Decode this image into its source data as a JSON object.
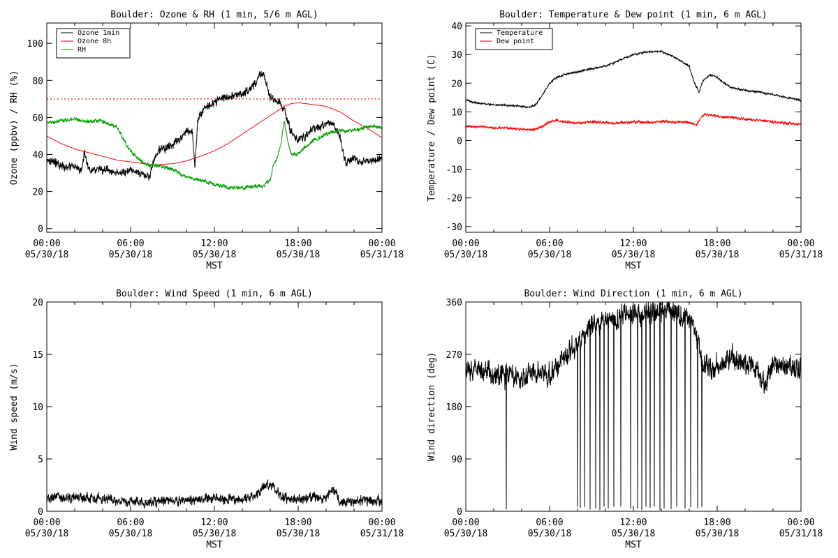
{
  "chart_data": [
    {
      "id": "ozone",
      "type": "line",
      "title": "Boulder: Ozone & RH (1 min, 5/6 m AGL)",
      "xlabel": "MST",
      "ylabel": "Ozone (ppbv) / RH (%)",
      "x_range_hours": [
        0,
        24
      ],
      "ylim": [
        -2,
        111
      ],
      "yticks": [
        0,
        20,
        40,
        60,
        80,
        100
      ],
      "xtick_labels": [
        [
          "00:00",
          "05/30/18"
        ],
        [
          "06:00",
          "05/30/18"
        ],
        [
          "12:00",
          "05/30/18"
        ],
        [
          "18:00",
          "05/30/18"
        ],
        [
          "00:00",
          "05/31/18"
        ]
      ],
      "legend": {
        "placement": "top-left",
        "entries": [
          "Ozone 1min",
          "Ozone 8h",
          "RH"
        ]
      },
      "reference_lines": [
        {
          "y": 70,
          "style": "dotted",
          "color": "#ff0000"
        }
      ],
      "series": [
        {
          "name": "Ozone 1min",
          "color": "#000000",
          "noise": 2.5,
          "x": [
            0,
            0.5,
            1,
            2,
            2.5,
            2.7,
            3,
            4,
            5,
            5.5,
            6,
            6.5,
            7,
            7.3,
            7.6,
            8,
            9,
            10,
            10.4,
            10.6,
            10.8,
            11,
            11.5,
            12,
            12.5,
            13,
            13.5,
            14,
            14.5,
            15,
            15.2,
            15.5,
            15.8,
            16,
            16.3,
            16.7,
            17,
            17.5,
            18,
            18.5,
            19,
            19.5,
            20,
            20.5,
            21,
            21.3,
            21.5,
            22,
            22.5,
            23,
            23.5,
            24
          ],
          "y": [
            38,
            36,
            34,
            33,
            32,
            42,
            32,
            32,
            30,
            30,
            31,
            30,
            29,
            27,
            35,
            42,
            45,
            52,
            53,
            34,
            58,
            62,
            66,
            68,
            70,
            71,
            72,
            73,
            75,
            79,
            83,
            84,
            76,
            70,
            70,
            68,
            64,
            52,
            48,
            50,
            54,
            55,
            56,
            57,
            50,
            37,
            35,
            38,
            36,
            37,
            36,
            38
          ]
        },
        {
          "name": "Ozone 8h",
          "color": "#ff0000",
          "noise": 0,
          "x": [
            0,
            1,
            2,
            3,
            4,
            5,
            6,
            7,
            7.5,
            8,
            9,
            10,
            11,
            12,
            13,
            14,
            15,
            16,
            17,
            17.5,
            18,
            19,
            20,
            21,
            22,
            23,
            24
          ],
          "y": [
            50,
            46,
            43,
            41,
            39,
            37,
            36,
            35,
            34.5,
            34.5,
            35,
            36.5,
            39,
            42,
            46,
            51,
            56,
            61,
            66,
            67.5,
            68,
            67,
            66,
            63,
            58,
            54,
            49
          ]
        },
        {
          "name": "RH",
          "color": "#00a000",
          "noise": 1.2,
          "x": [
            0,
            1,
            2,
            3,
            4,
            5,
            5.5,
            6,
            6.5,
            7,
            7.5,
            8,
            9,
            10,
            10.5,
            11,
            12,
            12.5,
            13,
            14,
            15,
            15.5,
            16,
            16.2,
            16.5,
            16.8,
            17,
            17.3,
            17.5,
            18,
            18.5,
            19,
            19.5,
            20,
            21,
            22,
            23,
            24
          ],
          "y": [
            57,
            58,
            59,
            58,
            58,
            55,
            48,
            42,
            38,
            35,
            34,
            34,
            32,
            28,
            27,
            26,
            24,
            23,
            22,
            22,
            23,
            23,
            26,
            34,
            38,
            48,
            58,
            45,
            40,
            40,
            44,
            47,
            49,
            51,
            53,
            53,
            55,
            55
          ]
        }
      ]
    },
    {
      "id": "temp",
      "type": "line",
      "title": "Boulder: Temperature & Dew point (1 min, 6 m AGL)",
      "xlabel": "MST",
      "ylabel": "Temperature / Dew point (C)",
      "x_range_hours": [
        0,
        24
      ],
      "ylim": [
        -32,
        41
      ],
      "yticks": [
        -30,
        -20,
        -10,
        0,
        10,
        20,
        30,
        40
      ],
      "xtick_labels": [
        [
          "00:00",
          "05/30/18"
        ],
        [
          "06:00",
          "05/30/18"
        ],
        [
          "12:00",
          "05/30/18"
        ],
        [
          "18:00",
          "05/30/18"
        ],
        [
          "00:00",
          "05/31/18"
        ]
      ],
      "legend": {
        "placement": "top-left",
        "entries": [
          "Temperature",
          "Dew point"
        ]
      },
      "series": [
        {
          "name": "Temperature",
          "color": "#000000",
          "noise": 0.35,
          "x": [
            0,
            1,
            2,
            3,
            4,
            4.5,
            5,
            5.5,
            6,
            6.5,
            7,
            8,
            9,
            10,
            11,
            12,
            13,
            14,
            15,
            16,
            16.3,
            16.7,
            17,
            17.5,
            18,
            18.5,
            19,
            20,
            21,
            22,
            23,
            24
          ],
          "y": [
            14,
            13,
            12.5,
            12.3,
            12,
            11.5,
            12.5,
            16,
            20,
            22,
            23,
            24,
            25,
            26,
            28,
            30,
            31,
            31,
            29,
            26,
            21,
            17,
            21,
            23,
            22,
            20,
            18.5,
            17.5,
            17,
            16,
            15,
            14
          ]
        },
        {
          "name": "Dew point",
          "color": "#ff0000",
          "noise": 0.5,
          "x": [
            0,
            1,
            2,
            3,
            4,
            5,
            5.5,
            6,
            6.5,
            7,
            8,
            9,
            10,
            11,
            12,
            13,
            14,
            15,
            16,
            16.5,
            17,
            17.5,
            18,
            19,
            20,
            21,
            22,
            23,
            24
          ],
          "y": [
            5,
            4.8,
            4.5,
            4.3,
            4,
            3.8,
            5,
            6.5,
            7,
            6.5,
            6.2,
            6.5,
            6.3,
            6.2,
            6.5,
            6.4,
            6.6,
            6.5,
            6.3,
            5.5,
            9,
            9,
            8.5,
            8,
            7.5,
            7,
            6.5,
            6,
            5.5
          ]
        }
      ]
    },
    {
      "id": "wspd",
      "type": "line",
      "title": "Boulder: Wind Speed (1 min, 6 m AGL)",
      "xlabel": "MST",
      "ylabel": "Wind speed (m/s)",
      "x_range_hours": [
        0,
        24
      ],
      "ylim": [
        0,
        20
      ],
      "yticks": [
        0,
        5,
        10,
        15,
        20
      ],
      "xtick_labels": [
        [
          "00:00",
          "05/30/18"
        ],
        [
          "06:00",
          "05/30/18"
        ],
        [
          "12:00",
          "05/30/18"
        ],
        [
          "18:00",
          "05/30/18"
        ],
        [
          "00:00",
          "05/31/18"
        ]
      ],
      "series": [
        {
          "name": "Wind speed",
          "color": "#000000",
          "noise": 0.55,
          "x": [
            0,
            2,
            4,
            6,
            7,
            8,
            10,
            12,
            14,
            15,
            15.5,
            16,
            16.5,
            17,
            18,
            19,
            20,
            20.5,
            21,
            22,
            24
          ],
          "y": [
            1.2,
            1.3,
            1.2,
            1,
            0.8,
            0.9,
            1,
            1.2,
            1.1,
            1.5,
            2.3,
            2.6,
            1.9,
            1.3,
            1.1,
            1.3,
            1.3,
            2.2,
            0.8,
            1,
            1.1
          ]
        }
      ]
    },
    {
      "id": "wdir",
      "type": "line",
      "title": "Boulder: Wind Direction (1 min, 6 m AGL)",
      "xlabel": "MST",
      "ylabel": "Wind direction (deg)",
      "x_range_hours": [
        0,
        24
      ],
      "ylim": [
        0,
        360
      ],
      "yticks": [
        0,
        90,
        180,
        270,
        360
      ],
      "xtick_labels": [
        [
          "00:00",
          "05/30/18"
        ],
        [
          "06:00",
          "05/30/18"
        ],
        [
          "12:00",
          "05/30/18"
        ],
        [
          "18:00",
          "05/30/18"
        ],
        [
          "00:00",
          "05/31/18"
        ]
      ],
      "series": [
        {
          "name": "Wind direction",
          "color": "#000000",
          "noise": 22,
          "x": [
            0,
            1,
            2,
            3,
            4,
            5,
            6,
            6.5,
            7,
            8,
            9,
            10,
            11,
            12,
            13,
            14,
            15,
            16,
            16.5,
            17,
            18,
            19,
            20,
            21,
            21.5,
            22,
            23,
            24
          ],
          "y": [
            240,
            245,
            235,
            238,
            230,
            240,
            235,
            250,
            265,
            290,
            320,
            330,
            335,
            340,
            340,
            345,
            340,
            330,
            300,
            245,
            250,
            265,
            255,
            240,
            215,
            255,
            245,
            245
          ],
          "dropouts_hours": [
            2.9,
            8.0,
            8.2,
            8.5,
            8.9,
            9.3,
            9.6,
            9.9,
            10.2,
            10.6,
            11.1,
            11.8,
            12.3,
            12.6,
            12.9,
            13.2,
            13.5,
            13.9,
            14.2,
            14.7,
            15.1,
            15.7,
            16.1,
            16.6,
            16.9
          ]
        }
      ]
    }
  ]
}
